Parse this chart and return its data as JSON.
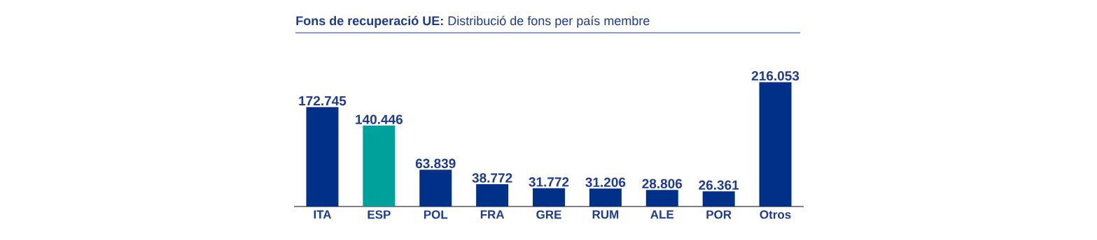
{
  "chart_data": {
    "type": "bar",
    "title": "**Fons de recuperació UE:** Distribució de fons per país membre",
    "categories": [
      "ITA",
      "ESP",
      "POL",
      "FRA",
      "GRE",
      "RUM",
      "ALE",
      "POR",
      "Otros"
    ],
    "values": [
      172745,
      140446,
      63839,
      38772,
      31772,
      31206,
      28806,
      26361,
      216053
    ],
    "value_labels": [
      "172.745",
      "140.446",
      "63.839",
      "38.772",
      "31.772",
      "31.206",
      "28.806",
      "26.361",
      "216.053"
    ],
    "colors": [
      "#003087",
      "#00a19a",
      "#003087",
      "#003087",
      "#003087",
      "#003087",
      "#003087",
      "#003087",
      "#003087"
    ]
  }
}
